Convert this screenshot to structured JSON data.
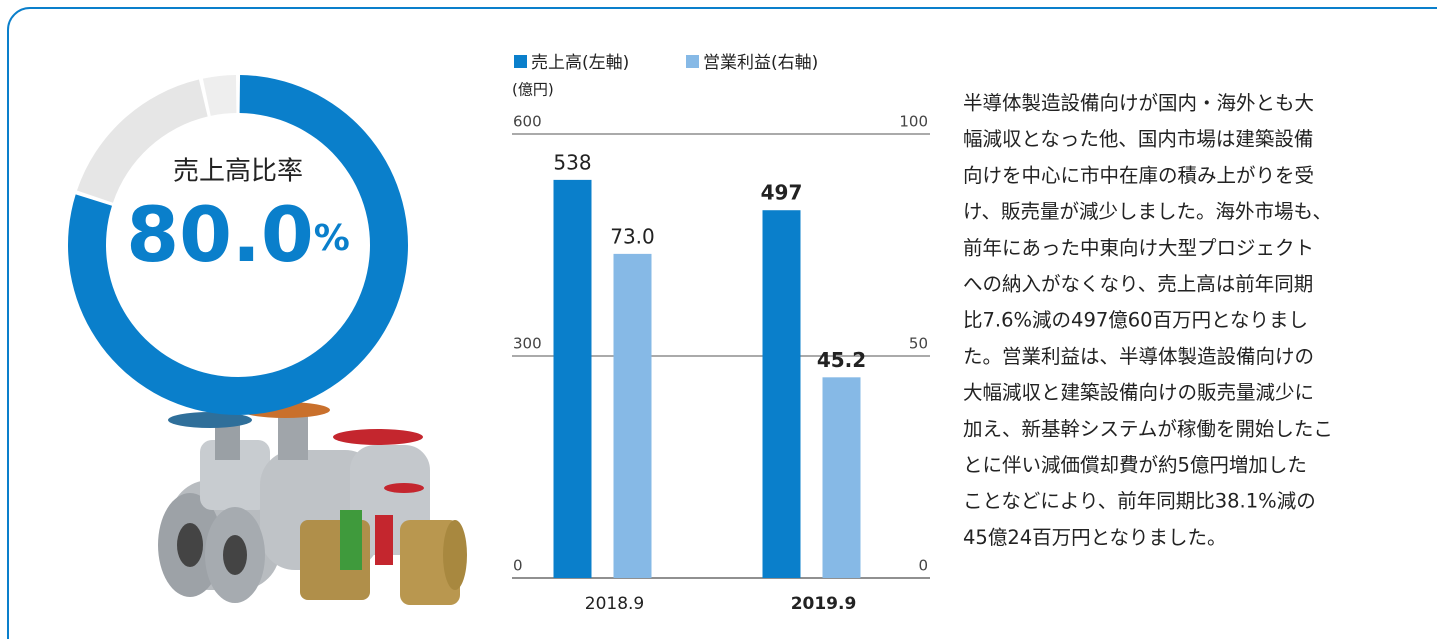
{
  "chart_data": [
    {
      "type": "pie",
      "center_label": "売上高比率",
      "categories": [
        null,
        null,
        null
      ],
      "values": [
        80.0,
        16.5,
        3.5
      ],
      "value_labels": [
        "80.0",
        null,
        null
      ],
      "unit": "%",
      "colors": [
        "#0a7fcb",
        "#e6e6e6",
        "#eeeeee"
      ]
    },
    {
      "type": "bar",
      "unit_label": "(億円)",
      "categories": [
        "2018.9",
        "2019.9"
      ],
      "series": [
        {
          "name": "売上高(左軸)",
          "color": "#0a7fcb",
          "values": [
            538,
            497
          ]
        },
        {
          "name": "営業利益(右軸)",
          "color": "#86b9e6",
          "axis": "y2",
          "values": [
            73.0,
            45.2
          ],
          "value_labels": [
            "73.0",
            "45.2"
          ]
        }
      ],
      "ylim": [
        0,
        600
      ],
      "yticks": [
        0,
        300,
        600
      ],
      "y2lim": [
        0,
        100
      ],
      "y2ticks": [
        0,
        50,
        100
      ],
      "grid": true,
      "legend": "top"
    }
  ],
  "description": [
    "半導体製造設備向けが国内・海外とも大",
    "幅減収となった他、国内市場は建築設備",
    "向けを中心に市中在庫の積み上がりを受",
    "け、販売量が減少しました。海外市場も、",
    "前年にあった中東向け大型プロジェクト",
    "への納入がなくなり、売上高は前年同期",
    "比7.6%減の497億60百万円となりまし",
    "た。営業利益は、半導体製造設備向けの",
    "大幅減収と建築設備向けの販売量減少に",
    "加え、新基幹システムが稼働を開始したこ",
    "とに伴い減価償却費が約5億円増加した",
    "ことなどにより、前年同期比38.1%減の",
    "45億24百万円となりました。"
  ]
}
